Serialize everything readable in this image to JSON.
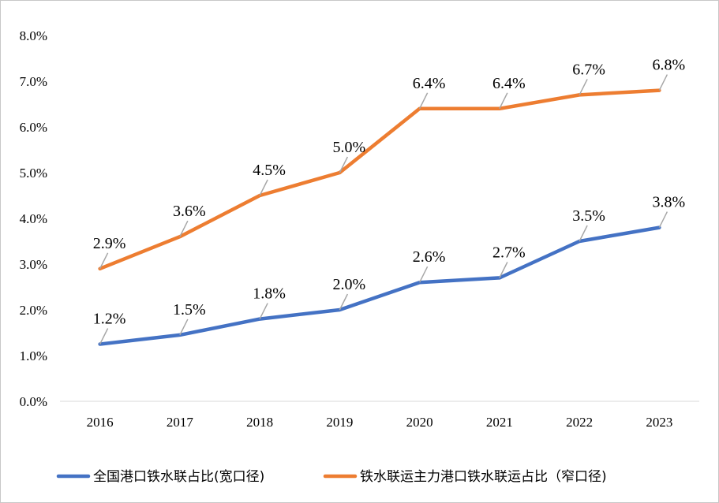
{
  "chart_data": {
    "type": "line",
    "categories": [
      "2016",
      "2017",
      "2018",
      "2019",
      "2020",
      "2021",
      "2022",
      "2023"
    ],
    "series": [
      {
        "name": "全国港口铁水联占比(宽口径)",
        "color": "#4472c4",
        "values": [
          1.25,
          1.45,
          1.8,
          2.0,
          2.6,
          2.7,
          3.5,
          3.8
        ],
        "labels": [
          "1.2%",
          "1.5%",
          "1.8%",
          "2.0%",
          "2.6%",
          "2.7%",
          "3.5%",
          "3.8%"
        ]
      },
      {
        "name": "铁水联运主力港口铁水联运占比（窄口径)",
        "color": "#ed7d31",
        "values": [
          2.9,
          3.6,
          4.5,
          5.0,
          6.4,
          6.4,
          6.7,
          6.8
        ],
        "labels": [
          "2.9%",
          "3.6%",
          "4.5%",
          "5.0%",
          "6.4%",
          "6.4%",
          "6.7%",
          "6.8%"
        ]
      }
    ],
    "yticks": [
      "0.0%",
      "1.0%",
      "2.0%",
      "3.0%",
      "4.0%",
      "5.0%",
      "6.0%",
      "7.0%",
      "8.0%"
    ],
    "ylim": [
      0,
      8
    ],
    "grid": false,
    "legend": "bottom"
  }
}
